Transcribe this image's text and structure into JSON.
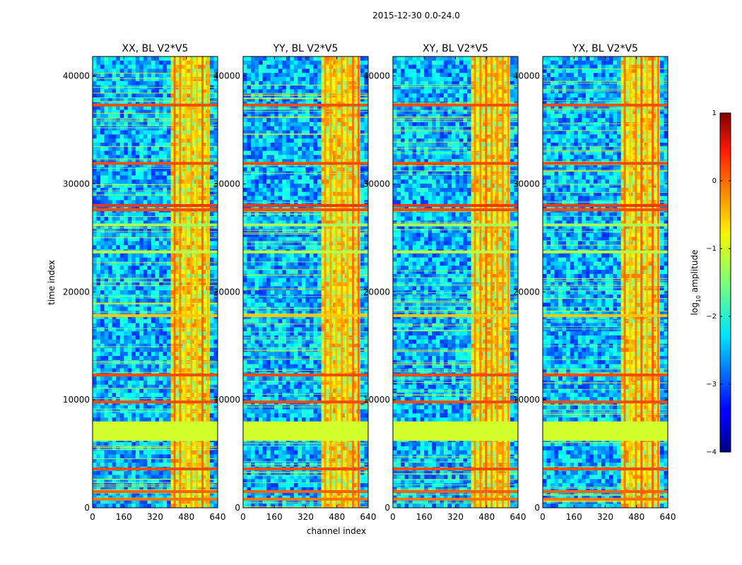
{
  "chart_data": {
    "type": "heatmap",
    "suptitle": "2015-12-30 0.0-24.0",
    "panels": [
      {
        "title": "XX, BL V2*V5"
      },
      {
        "title": "YY, BL V2*V5"
      },
      {
        "title": "XY, BL V2*V5"
      },
      {
        "title": "YX, BL V2*V5"
      }
    ],
    "xlabel": "channel index",
    "ylabel": "time index",
    "xlim": [
      0,
      640
    ],
    "ylim": [
      0,
      41800
    ],
    "xticks": [
      0,
      160,
      320,
      480,
      640
    ],
    "yticks": [
      0,
      10000,
      20000,
      30000,
      40000
    ],
    "colorbar": {
      "label_prefix": "log",
      "label_sub": "10",
      "label_suffix": " amplitude",
      "range": [
        -4,
        1
      ],
      "ticks": [
        "1",
        "0",
        "−1",
        "−2",
        "−3",
        "−4"
      ],
      "tick_values": [
        1,
        0,
        -1,
        -2,
        -3,
        -4
      ],
      "colormap": "jet"
    },
    "background_level": -2.5,
    "rfi_channel_band": [
      400,
      600
    ],
    "flagged_time_block": {
      "range": [
        6200,
        8000
      ],
      "level": -1.1
    },
    "bright_time_rows": [
      {
        "t": 37300,
        "level": 0.0
      },
      {
        "t": 31900,
        "level": 0.0
      },
      {
        "t": 28000,
        "level": 0.1
      },
      {
        "t": 27600,
        "level": 0.0
      },
      {
        "t": 26200,
        "level": -1.3
      },
      {
        "t": 23700,
        "level": -1.2
      },
      {
        "t": 17800,
        "level": -0.6
      },
      {
        "t": 12300,
        "level": 0.0
      },
      {
        "t": 9800,
        "level": 0.0
      },
      {
        "t": 3600,
        "level": 0.0
      },
      {
        "t": 1500,
        "level": -0.1
      },
      {
        "t": 800,
        "level": -0.2
      }
    ]
  }
}
